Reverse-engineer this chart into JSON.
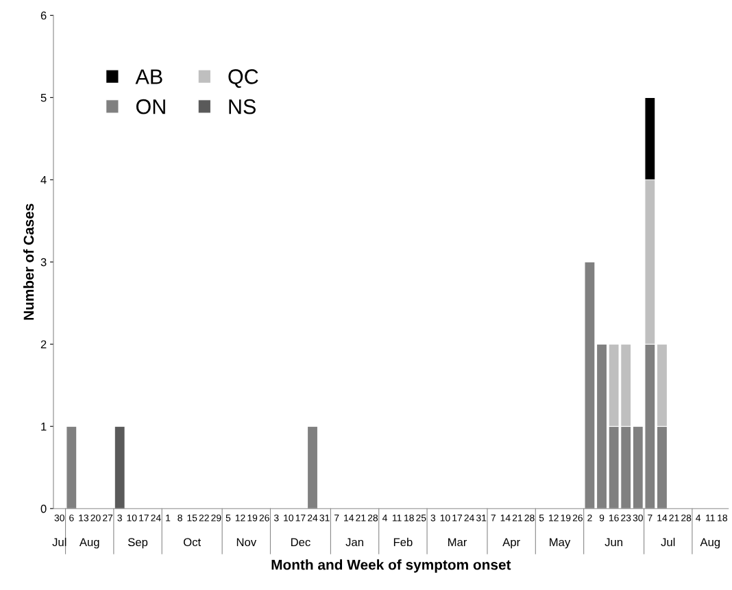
{
  "chart_data": {
    "type": "bar",
    "stacked": true,
    "xlabel": "Month and Week of symptom onset",
    "ylabel": "Number of Cases",
    "categories": [
      "30",
      "6",
      "13",
      "20",
      "27",
      "3",
      "10",
      "17",
      "24",
      "1",
      "8",
      "15",
      "22",
      "29",
      "5",
      "12",
      "19",
      "26",
      "3",
      "10",
      "17",
      "24",
      "31",
      "7",
      "14",
      "21",
      "28",
      "4",
      "11",
      "18",
      "25",
      "3",
      "10",
      "17",
      "24",
      "31",
      "7",
      "14",
      "21",
      "28",
      "5",
      "12",
      "19",
      "26",
      "2",
      "9",
      "16",
      "23",
      "30",
      "7",
      "14",
      "21",
      "28",
      "4",
      "11",
      "18"
    ],
    "annotations": [
      "Jul",
      "Aug",
      "Sep",
      "Oct",
      "Nov",
      "Dec",
      "Jan",
      "Feb",
      "Mar",
      "Apr",
      "May",
      "Jun",
      "Jul",
      "Aug"
    ],
    "series": [
      {
        "name": "NS",
        "color": "#5a5a5a",
        "values": [
          null,
          null,
          null,
          null,
          null,
          1,
          null,
          null,
          null,
          null,
          null,
          null,
          null,
          null,
          null,
          null,
          null,
          null,
          null,
          null,
          null,
          null,
          null,
          null,
          null,
          null,
          null,
          null,
          null,
          null,
          null,
          null,
          null,
          null,
          null,
          null,
          null,
          null,
          null,
          null,
          null,
          null,
          null,
          null,
          null,
          null,
          null,
          null,
          null,
          null,
          null,
          null,
          null,
          null,
          null,
          null
        ]
      },
      {
        "name": "ON",
        "color": "#808080",
        "values": [
          null,
          1,
          null,
          null,
          null,
          null,
          null,
          null,
          null,
          null,
          null,
          null,
          null,
          null,
          null,
          null,
          null,
          null,
          null,
          null,
          null,
          1,
          null,
          null,
          null,
          null,
          null,
          null,
          null,
          null,
          null,
          null,
          null,
          null,
          null,
          null,
          null,
          null,
          null,
          null,
          null,
          null,
          null,
          null,
          3,
          2,
          1,
          1,
          1,
          2,
          1,
          null,
          null,
          null,
          null,
          null
        ]
      },
      {
        "name": "QC",
        "color": "#bfbfbf",
        "values": [
          null,
          null,
          null,
          null,
          null,
          null,
          null,
          null,
          null,
          null,
          null,
          null,
          null,
          null,
          null,
          null,
          null,
          null,
          null,
          null,
          null,
          null,
          null,
          null,
          null,
          null,
          null,
          null,
          null,
          null,
          null,
          null,
          null,
          null,
          null,
          null,
          null,
          null,
          null,
          null,
          null,
          null,
          null,
          null,
          null,
          null,
          1,
          1,
          null,
          2,
          1,
          null,
          null,
          null,
          null,
          null
        ]
      },
      {
        "name": "AB",
        "color": "#000000",
        "values": [
          null,
          null,
          null,
          null,
          null,
          null,
          null,
          null,
          null,
          null,
          null,
          null,
          null,
          null,
          null,
          null,
          null,
          null,
          null,
          null,
          null,
          null,
          null,
          null,
          null,
          null,
          null,
          null,
          null,
          null,
          null,
          null,
          null,
          null,
          null,
          null,
          null,
          null,
          null,
          null,
          null,
          null,
          null,
          null,
          null,
          null,
          null,
          null,
          null,
          1,
          null,
          null,
          null,
          null,
          null,
          null
        ]
      }
    ],
    "ylim": [
      0,
      6
    ],
    "yticks": [
      0,
      1,
      2,
      3,
      4,
      5,
      6
    ],
    "grid": false,
    "legend": "top left"
  }
}
